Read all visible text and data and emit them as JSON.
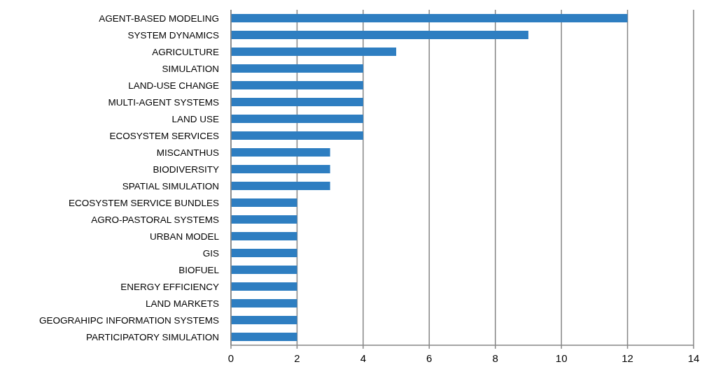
{
  "chart_data": {
    "type": "bar",
    "orientation": "horizontal",
    "categories": [
      "AGENT-BASED MODELING",
      "SYSTEM DYNAMICS",
      "AGRICULTURE",
      "SIMULATION",
      "LAND-USE CHANGE",
      "MULTI-AGENT SYSTEMS",
      "LAND USE",
      "ECOSYSTEM SERVICES",
      "MISCANTHUS",
      "BIODIVERSITY",
      "SPATIAL SIMULATION",
      "ECOSYSTEM SERVICE BUNDLES",
      "AGRO-PASTORAL SYSTEMS",
      "URBAN MODEL",
      "GIS",
      "BIOFUEL",
      "ENERGY EFFICIENCY",
      "LAND MARKETS",
      "GEOGRAHIPC INFORMATION SYSTEMS",
      "PARTICIPATORY SIMULATION"
    ],
    "values": [
      12,
      9,
      5,
      4,
      4,
      4,
      4,
      4,
      3,
      3,
      3,
      2,
      2,
      2,
      2,
      2,
      2,
      2,
      2,
      2
    ],
    "color": "#2e7ec1",
    "xlim": [
      0,
      14
    ],
    "xticks": [
      0,
      2,
      4,
      6,
      8,
      10,
      12,
      14
    ],
    "grid": "x"
  }
}
